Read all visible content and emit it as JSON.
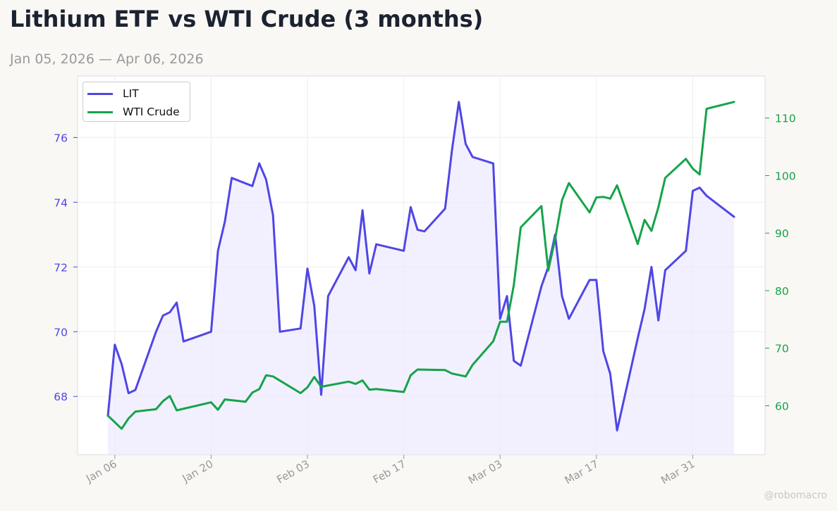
{
  "header": {
    "title": "Lithium ETF vs WTI Crude (3 months)",
    "subtitle": "Jan 05, 2026 — Apr 06, 2026"
  },
  "watermark": "@robomacro",
  "chart_data": {
    "type": "line",
    "x_axis": {
      "type": "date",
      "range": [
        "2026-01-05",
        "2026-04-06"
      ],
      "ticks": [
        {
          "date": "2026-01-06",
          "label": "Jan 06"
        },
        {
          "date": "2026-01-20",
          "label": "Jan 20"
        },
        {
          "date": "2026-02-03",
          "label": "Feb 03"
        },
        {
          "date": "2026-02-17",
          "label": "Feb 17"
        },
        {
          "date": "2026-03-03",
          "label": "Mar 03"
        },
        {
          "date": "2026-03-17",
          "label": "Mar 17"
        },
        {
          "date": "2026-03-31",
          "label": "Mar 31"
        }
      ]
    },
    "y_left": {
      "range": [
        66.2,
        77.9
      ],
      "ticks": [
        68,
        70,
        72,
        74,
        76
      ],
      "color": "#4f46e5"
    },
    "y_right": {
      "range": [
        51.5,
        117.3
      ],
      "ticks": [
        60,
        70,
        80,
        90,
        100,
        110
      ],
      "color": "#16a34a"
    },
    "grid": true,
    "legend": {
      "placement": "top-left"
    },
    "series": [
      {
        "name": "LIT",
        "axis": "left",
        "color": "#4f46e5",
        "fill": "#ede9fe",
        "points": [
          [
            "2026-01-05",
            67.4
          ],
          [
            "2026-01-06",
            69.6
          ],
          [
            "2026-01-07",
            69.0
          ],
          [
            "2026-01-08",
            68.1
          ],
          [
            "2026-01-09",
            68.2
          ],
          [
            "2026-01-12",
            70.0
          ],
          [
            "2026-01-13",
            70.5
          ],
          [
            "2026-01-14",
            70.6
          ],
          [
            "2026-01-15",
            70.9
          ],
          [
            "2026-01-16",
            69.7
          ],
          [
            "2026-01-20",
            70.0
          ],
          [
            "2026-01-21",
            72.5
          ],
          [
            "2026-01-22",
            73.4
          ],
          [
            "2026-01-23",
            74.75
          ],
          [
            "2026-01-26",
            74.5
          ],
          [
            "2026-01-27",
            75.2
          ],
          [
            "2026-01-28",
            74.7
          ],
          [
            "2026-01-29",
            73.6
          ],
          [
            "2026-01-30",
            70.0
          ],
          [
            "2026-02-02",
            70.1
          ],
          [
            "2026-02-03",
            71.95
          ],
          [
            "2026-02-04",
            70.8
          ],
          [
            "2026-02-05",
            68.05
          ],
          [
            "2026-02-06",
            71.1
          ],
          [
            "2026-02-09",
            72.3
          ],
          [
            "2026-02-10",
            71.9
          ],
          [
            "2026-02-11",
            73.75
          ],
          [
            "2026-02-12",
            71.8
          ],
          [
            "2026-02-13",
            72.7
          ],
          [
            "2026-02-17",
            72.5
          ],
          [
            "2026-02-18",
            73.85
          ],
          [
            "2026-02-19",
            73.15
          ],
          [
            "2026-02-20",
            73.1
          ],
          [
            "2026-02-23",
            73.8
          ],
          [
            "2026-02-24",
            75.6
          ],
          [
            "2026-02-25",
            77.1
          ],
          [
            "2026-02-26",
            75.8
          ],
          [
            "2026-02-27",
            75.4
          ],
          [
            "2026-03-02",
            75.2
          ],
          [
            "2026-03-03",
            70.4
          ],
          [
            "2026-03-04",
            71.1
          ],
          [
            "2026-03-05",
            69.1
          ],
          [
            "2026-03-06",
            68.95
          ],
          [
            "2026-03-09",
            71.4
          ],
          [
            "2026-03-10",
            72.0
          ],
          [
            "2026-03-11",
            73.0
          ],
          [
            "2026-03-12",
            71.1
          ],
          [
            "2026-03-13",
            70.4
          ],
          [
            "2026-03-16",
            71.6
          ],
          [
            "2026-03-17",
            71.6
          ],
          [
            "2026-03-18",
            69.4
          ],
          [
            "2026-03-19",
            68.7
          ],
          [
            "2026-03-20",
            66.95
          ],
          [
            "2026-03-23",
            69.8
          ],
          [
            "2026-03-24",
            70.7
          ],
          [
            "2026-03-25",
            72.0
          ],
          [
            "2026-03-26",
            70.35
          ],
          [
            "2026-03-27",
            71.9
          ],
          [
            "2026-03-30",
            72.5
          ],
          [
            "2026-03-31",
            74.35
          ],
          [
            "2026-04-01",
            74.45
          ],
          [
            "2026-04-02",
            74.2
          ],
          [
            "2026-04-06",
            73.55
          ]
        ]
      },
      {
        "name": "WTI Crude",
        "axis": "right",
        "color": "#16a34a",
        "points": [
          [
            "2026-01-05",
            58.3
          ],
          [
            "2026-01-07",
            56.0
          ],
          [
            "2026-01-08",
            57.8
          ],
          [
            "2026-01-09",
            59.0
          ],
          [
            "2026-01-12",
            59.4
          ],
          [
            "2026-01-13",
            60.8
          ],
          [
            "2026-01-14",
            61.7
          ],
          [
            "2026-01-15",
            59.2
          ],
          [
            "2026-01-20",
            60.6
          ],
          [
            "2026-01-21",
            59.3
          ],
          [
            "2026-01-22",
            61.1
          ],
          [
            "2026-01-25",
            60.7
          ],
          [
            "2026-01-26",
            62.3
          ],
          [
            "2026-01-27",
            62.9
          ],
          [
            "2026-01-28",
            65.3
          ],
          [
            "2026-01-29",
            65.1
          ],
          [
            "2026-02-02",
            62.2
          ],
          [
            "2026-02-03",
            63.2
          ],
          [
            "2026-02-04",
            65.0
          ],
          [
            "2026-02-05",
            63.3
          ],
          [
            "2026-02-09",
            64.2
          ],
          [
            "2026-02-10",
            63.8
          ],
          [
            "2026-02-11",
            64.4
          ],
          [
            "2026-02-12",
            62.8
          ],
          [
            "2026-02-13",
            62.9
          ],
          [
            "2026-02-17",
            62.4
          ],
          [
            "2026-02-18",
            65.3
          ],
          [
            "2026-02-19",
            66.3
          ],
          [
            "2026-02-23",
            66.2
          ],
          [
            "2026-02-24",
            65.6
          ],
          [
            "2026-02-26",
            65.1
          ],
          [
            "2026-02-27",
            67.1
          ],
          [
            "2026-03-02",
            71.2
          ],
          [
            "2026-03-03",
            74.6
          ],
          [
            "2026-03-04",
            74.6
          ],
          [
            "2026-03-05",
            81.0
          ],
          [
            "2026-03-06",
            91.0
          ],
          [
            "2026-03-09",
            94.7
          ],
          [
            "2026-03-10",
            83.5
          ],
          [
            "2026-03-11",
            89.0
          ],
          [
            "2026-03-12",
            95.7
          ],
          [
            "2026-03-13",
            98.7
          ],
          [
            "2026-03-16",
            93.6
          ],
          [
            "2026-03-17",
            96.2
          ],
          [
            "2026-03-18",
            96.3
          ],
          [
            "2026-03-19",
            96.0
          ],
          [
            "2026-03-20",
            98.3
          ],
          [
            "2026-03-23",
            88.1
          ],
          [
            "2026-03-24",
            92.3
          ],
          [
            "2026-03-25",
            90.4
          ],
          [
            "2026-03-26",
            94.5
          ],
          [
            "2026-03-27",
            99.6
          ],
          [
            "2026-03-30",
            102.9
          ],
          [
            "2026-03-31",
            101.2
          ],
          [
            "2026-04-01",
            100.2
          ],
          [
            "2026-04-02",
            111.6
          ],
          [
            "2026-04-06",
            112.8
          ]
        ]
      }
    ]
  }
}
